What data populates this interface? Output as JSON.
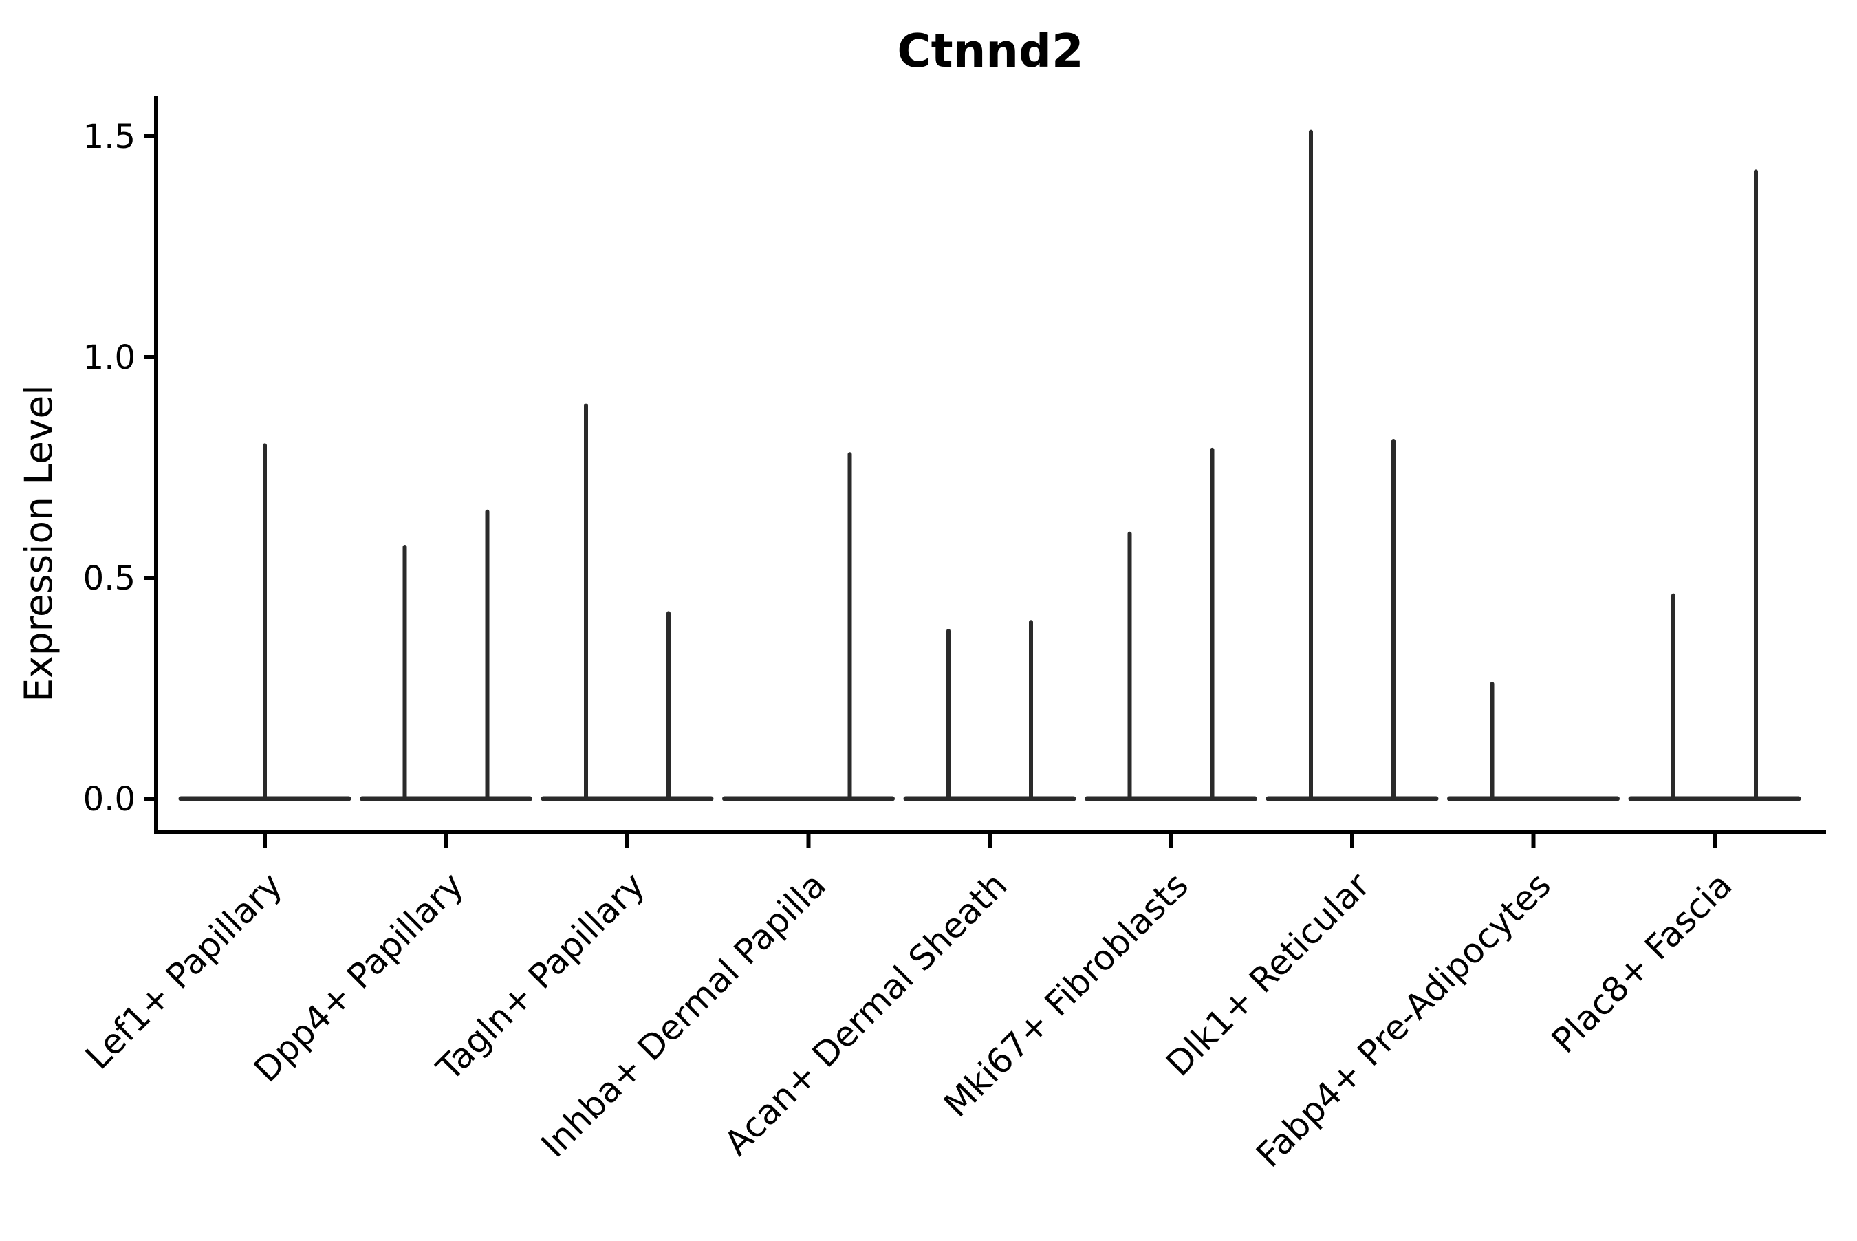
{
  "page": {
    "background": "#ffffff"
  },
  "chart_data": {
    "type": "violin",
    "title": "Ctnnd2",
    "ylabel": "Expression Level",
    "xlabel": "",
    "ylim": [
      -0.08,
      1.59
    ],
    "yticks": [
      0.0,
      0.5,
      1.0,
      1.5
    ],
    "ytick_labels": [
      "0.0",
      "0.5",
      "1.0",
      "1.5"
    ],
    "grid": false,
    "legend": null,
    "axis_color": "#000000",
    "violin_outline_color": "#2a2a2a",
    "categories": [
      "Lef1+ Papillary",
      "Dpp4+ Papillary",
      "Tagln+ Papillary",
      "Inhba+ Dermal Papilla",
      "Acan+ Dermal Sheath",
      "Mki67+ Fibroblasts",
      "Dlk1+ Reticular",
      "Fabp4+ Pre-Adipocytes",
      "Plac8+ Fascia"
    ],
    "series": [
      {
        "category": "Lef1+ Papillary",
        "spikes": [
          {
            "position": "center",
            "value": 0.8
          }
        ]
      },
      {
        "category": "Dpp4+ Papillary",
        "spikes": [
          {
            "position": "left",
            "value": 0.57
          },
          {
            "position": "right",
            "value": 0.65
          }
        ]
      },
      {
        "category": "Tagln+ Papillary",
        "spikes": [
          {
            "position": "left",
            "value": 0.89
          },
          {
            "position": "right",
            "value": 0.42
          }
        ]
      },
      {
        "category": "Inhba+ Dermal Papilla",
        "spikes": [
          {
            "position": "right",
            "value": 0.78
          }
        ]
      },
      {
        "category": "Acan+ Dermal Sheath",
        "spikes": [
          {
            "position": "left",
            "value": 0.38
          },
          {
            "position": "right",
            "value": 0.4
          }
        ]
      },
      {
        "category": "Mki67+ Fibroblasts",
        "spikes": [
          {
            "position": "left",
            "value": 0.6
          },
          {
            "position": "right",
            "value": 0.79
          }
        ]
      },
      {
        "category": "Dlk1+ Reticular",
        "spikes": [
          {
            "position": "left",
            "value": 1.51
          },
          {
            "position": "right",
            "value": 0.81
          }
        ]
      },
      {
        "category": "Fabp4+ Pre-Adipocytes",
        "spikes": [
          {
            "position": "left",
            "value": 0.26
          }
        ]
      },
      {
        "category": "Plac8+ Fascia",
        "spikes": [
          {
            "position": "left",
            "value": 0.46
          },
          {
            "position": "right",
            "value": 1.42
          }
        ]
      }
    ],
    "baseline_value": 0.0
  }
}
